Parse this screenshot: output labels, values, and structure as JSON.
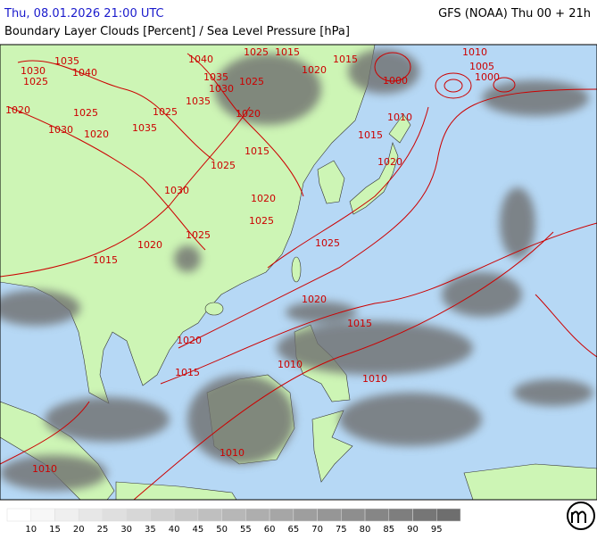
{
  "header": {
    "datetime": "Thu, 08.01.2026 21:00 UTC",
    "model": "GFS (NOAA) Thu 00 + 21h",
    "title": "Boundary Layer Clouds [Percent] / Sea Level Pressure [hPa]"
  },
  "isobar_labels": [
    "1030",
    "1035",
    "1025",
    "1040",
    "1020",
    "1025",
    "1035",
    "1030",
    "1020",
    "1025",
    "1040",
    "1035",
    "1030",
    "1035",
    "1025",
    "1020",
    "1025",
    "1015",
    "1020",
    "1015",
    "1010",
    "1005",
    "1000",
    "1000",
    "1010",
    "1015",
    "1020",
    "1025",
    "1015",
    "1030",
    "1020",
    "1025",
    "1025",
    "1020",
    "1015",
    "1025",
    "1020",
    "1015",
    "1020",
    "1015",
    "1010",
    "1010",
    "1010",
    "1010"
  ],
  "legend": {
    "labels": [
      10,
      15,
      20,
      25,
      30,
      35,
      40,
      45,
      50,
      55,
      60,
      65,
      70,
      75,
      80,
      85,
      90,
      95
    ]
  }
}
